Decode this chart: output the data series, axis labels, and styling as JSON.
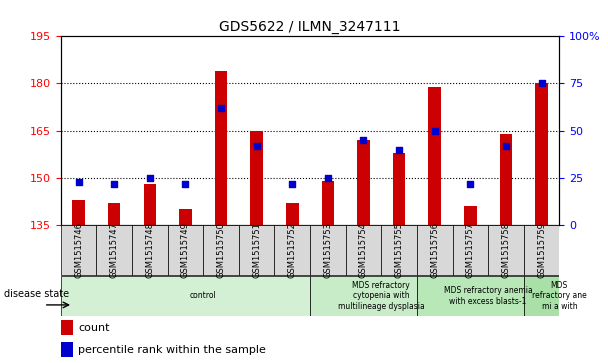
{
  "title": "GDS5622 / ILMN_3247111",
  "samples": [
    "GSM1515746",
    "GSM1515747",
    "GSM1515748",
    "GSM1515749",
    "GSM1515750",
    "GSM1515751",
    "GSM1515752",
    "GSM1515753",
    "GSM1515754",
    "GSM1515755",
    "GSM1515756",
    "GSM1515757",
    "GSM1515758",
    "GSM1515759"
  ],
  "count_values": [
    143,
    142,
    148,
    140,
    184,
    165,
    142,
    149,
    162,
    158,
    179,
    141,
    164,
    180
  ],
  "percentile_values": [
    23,
    22,
    25,
    22,
    62,
    42,
    22,
    25,
    45,
    40,
    50,
    22,
    42,
    75
  ],
  "ylim_left": [
    135,
    195
  ],
  "ylim_right": [
    0,
    100
  ],
  "yticks_left": [
    135,
    150,
    165,
    180,
    195
  ],
  "yticks_right": [
    0,
    25,
    50,
    75,
    100
  ],
  "yticklabels_right": [
    "0",
    "25",
    "50",
    "75",
    "100%"
  ],
  "bar_color": "#cc0000",
  "percentile_color": "#0000cc",
  "disease_groups": [
    {
      "label": "control",
      "start": 0,
      "end": 7,
      "color": "#d4f0d4"
    },
    {
      "label": "MDS refractory\ncytopenia with\nmultilineage dysplasia",
      "start": 7,
      "end": 10,
      "color": "#c8ecc8"
    },
    {
      "label": "MDS refractory anemia\nwith excess blasts-1",
      "start": 10,
      "end": 13,
      "color": "#b8e8b8"
    },
    {
      "label": "MDS\nrefractory ane\nmi a with",
      "start": 13,
      "end": 14,
      "color": "#a8e0a8"
    }
  ],
  "disease_state_label": "disease state",
  "legend_count_label": "count",
  "legend_percentile_label": "percentile rank within the sample"
}
